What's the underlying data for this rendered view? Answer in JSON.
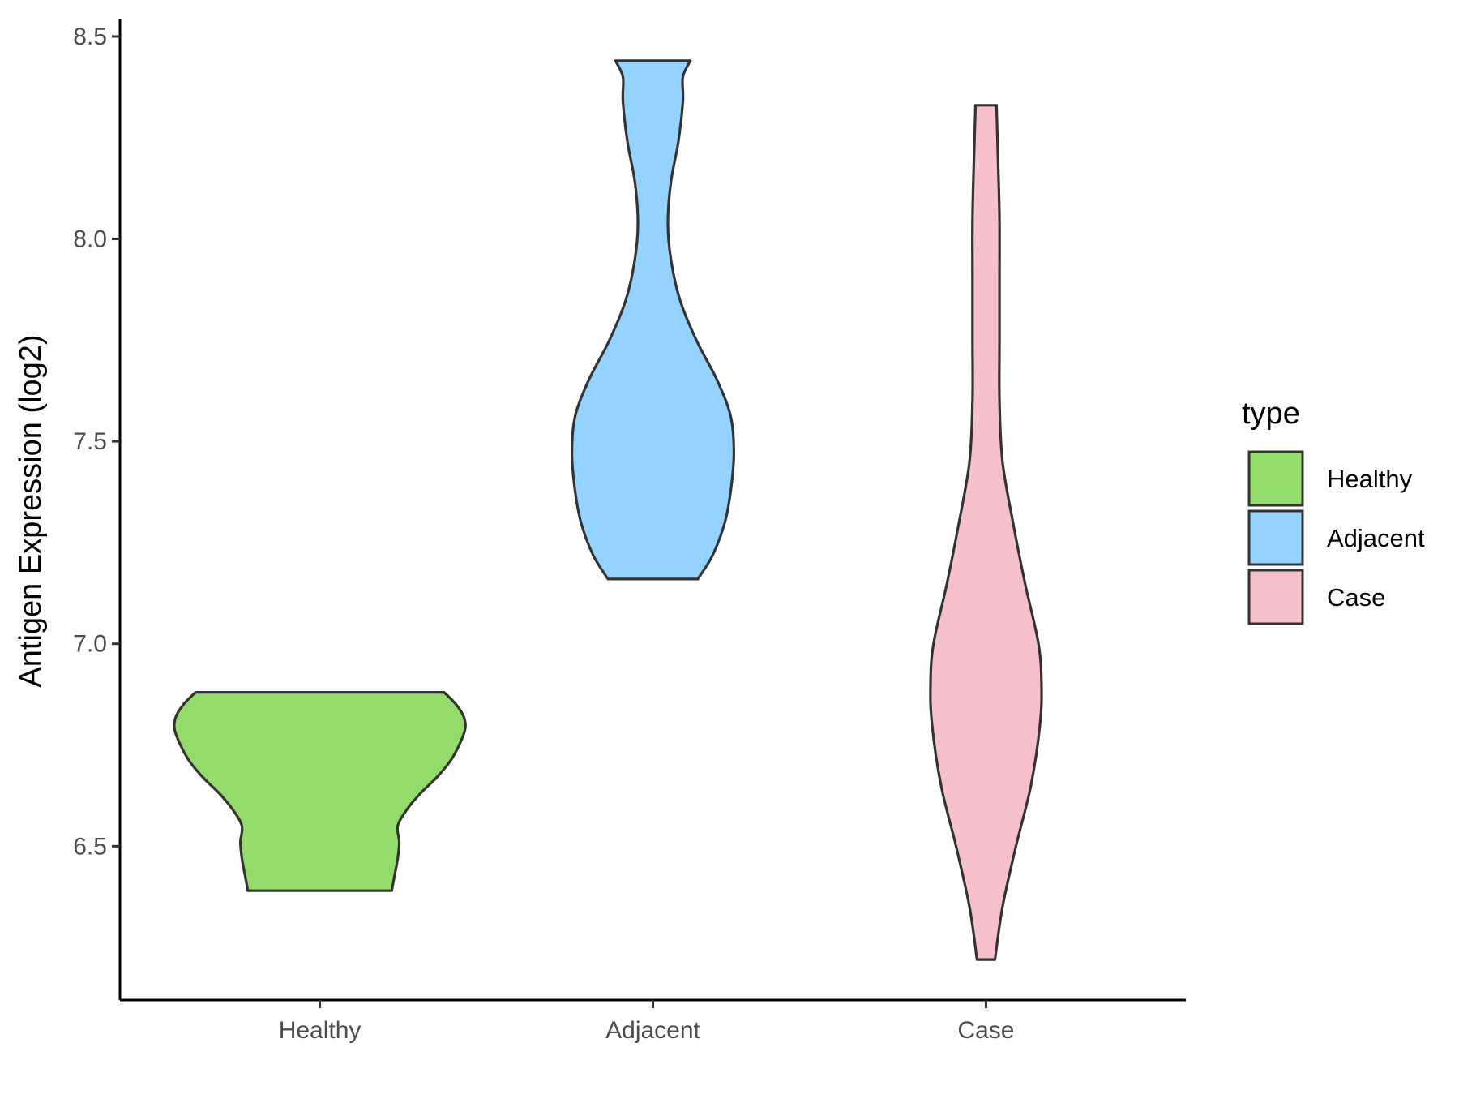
{
  "chart_data": {
    "type": "violin",
    "title": "",
    "xlabel": "",
    "ylabel": "Antigen Expression (log2)",
    "ylim": [
      6.12,
      8.55
    ],
    "yticks": [
      6.5,
      7.0,
      7.5,
      8.0,
      8.5
    ],
    "ytick_labels": [
      "6.5",
      "7.0",
      "7.5",
      "8.0",
      "8.5"
    ],
    "categories": [
      "Healthy",
      "Adjacent",
      "Case"
    ],
    "grid": false,
    "legend": {
      "title": "type",
      "position": "right",
      "entries": [
        {
          "label": "Healthy",
          "color": "#93DB6A"
        },
        {
          "label": "Adjacent",
          "color": "#94D3FF"
        },
        {
          "label": "Case",
          "color": "#F7C1CC"
        }
      ]
    },
    "series": [
      {
        "category": "Healthy",
        "color": "#93DB6A",
        "min": 6.39,
        "max": 6.88,
        "density_profile": [
          [
            6.39,
            0.48
          ],
          [
            6.43,
            0.5
          ],
          [
            6.47,
            0.52
          ],
          [
            6.51,
            0.53
          ],
          [
            6.55,
            0.52
          ],
          [
            6.59,
            0.58
          ],
          [
            6.63,
            0.67
          ],
          [
            6.67,
            0.78
          ],
          [
            6.71,
            0.87
          ],
          [
            6.75,
            0.93
          ],
          [
            6.79,
            0.97
          ],
          [
            6.82,
            0.96
          ],
          [
            6.85,
            0.91
          ],
          [
            6.88,
            0.83
          ]
        ]
      },
      {
        "category": "Adjacent",
        "color": "#94D3FF",
        "min": 7.16,
        "max": 8.44,
        "density_profile": [
          [
            7.16,
            0.3
          ],
          [
            7.22,
            0.4
          ],
          [
            7.3,
            0.48
          ],
          [
            7.38,
            0.52
          ],
          [
            7.47,
            0.54
          ],
          [
            7.56,
            0.52
          ],
          [
            7.65,
            0.43
          ],
          [
            7.75,
            0.29
          ],
          [
            7.85,
            0.18
          ],
          [
            7.95,
            0.12
          ],
          [
            8.04,
            0.1
          ],
          [
            8.14,
            0.12
          ],
          [
            8.24,
            0.17
          ],
          [
            8.34,
            0.2
          ],
          [
            8.4,
            0.2
          ],
          [
            8.44,
            0.25
          ]
        ]
      },
      {
        "category": "Case",
        "color": "#F7C1CC",
        "min": 6.22,
        "max": 8.33,
        "density_profile": [
          [
            6.22,
            0.06
          ],
          [
            6.35,
            0.11
          ],
          [
            6.5,
            0.2
          ],
          [
            6.65,
            0.3
          ],
          [
            6.8,
            0.36
          ],
          [
            6.9,
            0.37
          ],
          [
            7.0,
            0.35
          ],
          [
            7.15,
            0.26
          ],
          [
            7.3,
            0.18
          ],
          [
            7.45,
            0.11
          ],
          [
            7.6,
            0.09
          ],
          [
            7.75,
            0.09
          ],
          [
            7.9,
            0.09
          ],
          [
            8.05,
            0.09
          ],
          [
            8.2,
            0.08
          ],
          [
            8.33,
            0.07
          ]
        ]
      }
    ]
  }
}
